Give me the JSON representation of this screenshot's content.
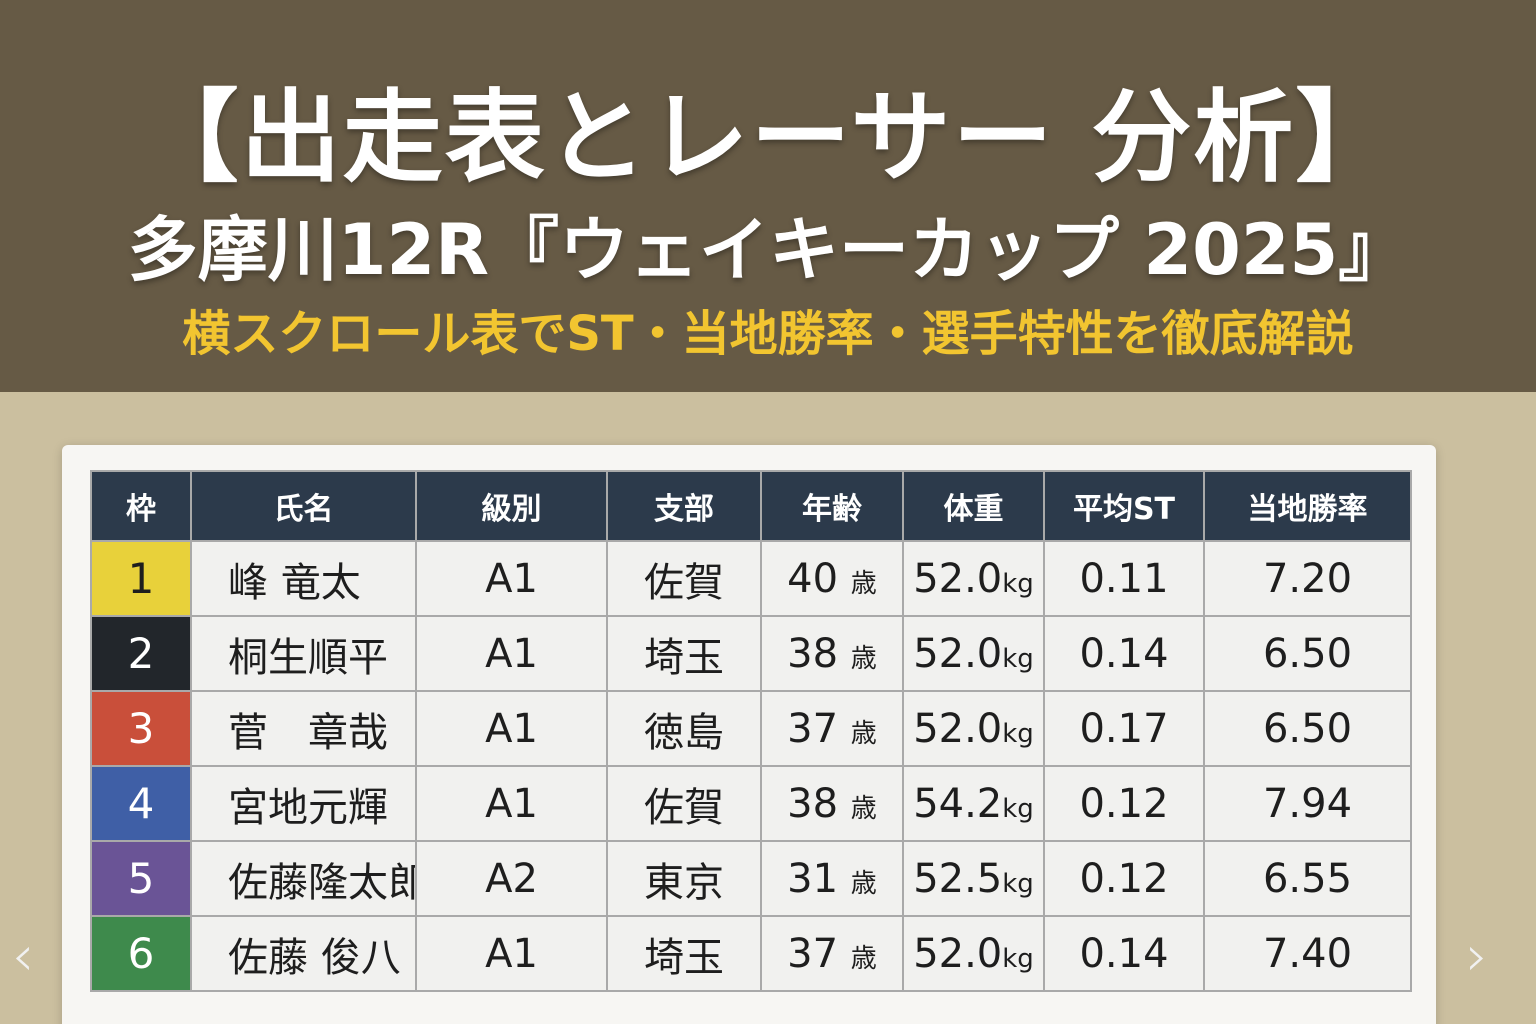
{
  "header": {
    "title": "【出走表とレーサー 分析】",
    "subtitle": "多摩川12R『ウェイキーカップ 2025』",
    "tagline": "横スクロール表でST・当地勝率・選手特性を徹底解説"
  },
  "table": {
    "columns": [
      "枠",
      "氏名",
      "級別",
      "支部",
      "年齢",
      "体重",
      "平均ST",
      "当地勝率"
    ],
    "rows": [
      {
        "waku": "1",
        "name": "峰 竜太",
        "class": "A1",
        "branch": "佐賀",
        "age": "40",
        "age_unit": "歳",
        "weight": "52.0",
        "weight_unit": "kg",
        "st": "0.11",
        "win_rate": "7.20",
        "color": "#e8d13a",
        "text_color": "#1e1e1e"
      },
      {
        "waku": "2",
        "name": "桐生順平",
        "class": "A1",
        "branch": "埼玉",
        "age": "38",
        "age_unit": "歳",
        "weight": "52.0",
        "weight_unit": "kg",
        "st": "0.14",
        "win_rate": "6.50",
        "color": "#22262b",
        "text_color": "#ffffff"
      },
      {
        "waku": "3",
        "name": "菅　章哉",
        "class": "A1",
        "branch": "徳島",
        "age": "37",
        "age_unit": "歳",
        "weight": "52.0",
        "weight_unit": "kg",
        "st": "0.17",
        "win_rate": "6.50",
        "color": "#c94f3a",
        "text_color": "#ffffff"
      },
      {
        "waku": "4",
        "name": "宮地元輝",
        "class": "A1",
        "branch": "佐賀",
        "age": "38",
        "age_unit": "歳",
        "weight": "54.2",
        "weight_unit": "kg",
        "st": "0.12",
        "win_rate": "7.94",
        "color": "#3f5fa6",
        "text_color": "#ffffff"
      },
      {
        "waku": "5",
        "name": "佐藤隆太郎",
        "class": "A2",
        "branch": "東京",
        "age": "31",
        "age_unit": "歳",
        "weight": "52.5",
        "weight_unit": "kg",
        "st": "0.12",
        "win_rate": "6.55",
        "color": "#6a5496",
        "text_color": "#ffffff"
      },
      {
        "waku": "6",
        "name": "佐藤 俊八",
        "class": "A1",
        "branch": "埼玉",
        "age": "37",
        "age_unit": "歳",
        "weight": "52.0",
        "weight_unit": "kg",
        "st": "0.14",
        "win_rate": "7.40",
        "color": "#3e8a4c",
        "text_color": "#ffffff"
      }
    ]
  },
  "nav": {
    "prev": "‹",
    "next": "›"
  }
}
